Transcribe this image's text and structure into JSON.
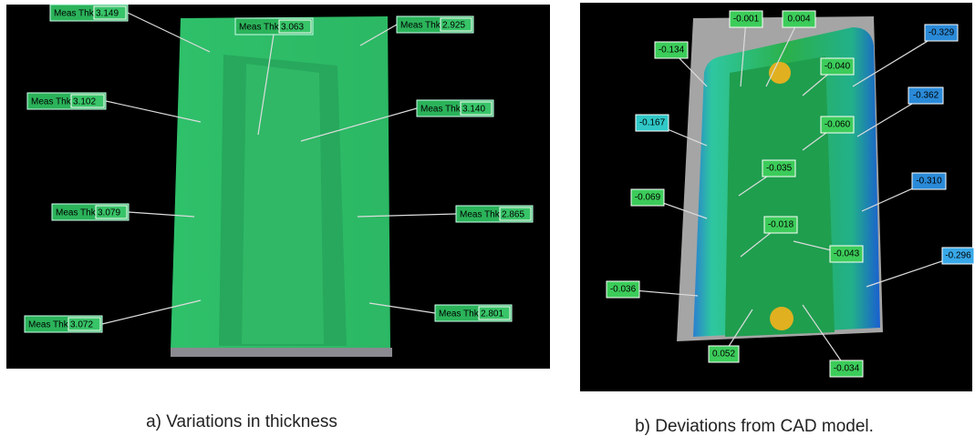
{
  "panel_a": {
    "labels": [
      {
        "prefix": "Meas Thk",
        "value": "3.149"
      },
      {
        "prefix": "Meas Thk",
        "value": "3.063"
      },
      {
        "prefix": "Meas Thk",
        "value": "2.925"
      },
      {
        "prefix": "Meas Thk",
        "value": "3.102"
      },
      {
        "prefix": "Meas Thk",
        "value": "3.140"
      },
      {
        "prefix": "Meas Thk",
        "value": "3.079"
      },
      {
        "prefix": "Meas Thk",
        "value": "2.865"
      },
      {
        "prefix": "Meas Thk",
        "value": "3.072"
      },
      {
        "prefix": "Meas Thk",
        "value": "2.801"
      }
    ],
    "caption": "a) Variations in thickness"
  },
  "panel_b": {
    "labels": [
      "-0.001",
      "0.004",
      "-0.134",
      "-0.329",
      "-0.040",
      "-0.362",
      "-0.167",
      "-0.060",
      "-0.035",
      "-0.310",
      "-0.069",
      "-0.018",
      "-0.043",
      "-0.296",
      "-0.036",
      "0.052",
      "-0.034"
    ],
    "caption": "b) Deviations from CAD model."
  }
}
